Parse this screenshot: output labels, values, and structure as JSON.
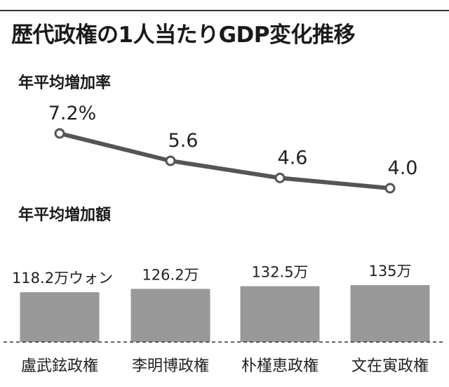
{
  "title": "歴代政権の1人当たりGDP変化推移",
  "line_section_label": "年平均増加率",
  "bar_section_label": "年平均増加額",
  "colors": {
    "line": "#555555",
    "marker_fill": "#ffffff",
    "bar": "#999999",
    "text": "#1a1a1a"
  },
  "chart_data": [
    {
      "type": "line",
      "title": "年平均増加率",
      "categories": [
        "盧武鉉政権",
        "李明博政権",
        "朴槿恵政権",
        "文在寅政権"
      ],
      "values": [
        7.2,
        5.6,
        4.6,
        4.0
      ],
      "data_labels": [
        "7.2%",
        "5.6",
        "4.6",
        "4.0"
      ],
      "grid": false
    },
    {
      "type": "bar",
      "title": "年平均増加額",
      "categories": [
        "盧武鉉政権",
        "李明博政権",
        "朴槿恵政権",
        "文在寅政権"
      ],
      "values": [
        118.2,
        126.2,
        132.5,
        135
      ],
      "data_labels": [
        "118.2万ウォン",
        "126.2万",
        "132.5万",
        "135万"
      ],
      "grid": false
    }
  ]
}
